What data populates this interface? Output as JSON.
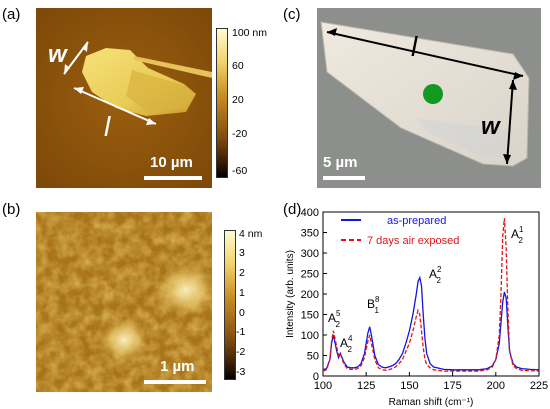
{
  "panels": {
    "a": {
      "letter": "(a)",
      "scale_label": "10 µm",
      "w_label": "w",
      "l_label": "l",
      "colorbar_ticks": [
        "100 nm",
        "60",
        "20",
        "-20",
        "-60"
      ]
    },
    "b": {
      "letter": "(b)",
      "scale_label": "1 µm",
      "colorbar_ticks": [
        "4 nm",
        "3",
        "2",
        "1",
        "0",
        "-1",
        "-2",
        "-3"
      ]
    },
    "c": {
      "letter": "(c)",
      "scale_label": "5 µm",
      "w_label": "w",
      "l_label": "l"
    },
    "d": {
      "letter": "(d)"
    }
  },
  "colors": {
    "as_prepared": "#1515e0",
    "air_exposed": "#e01515",
    "dot": "#119922"
  },
  "chart_data": {
    "type": "line",
    "title": "",
    "xlabel": "Raman shift (cm⁻¹)",
    "ylabel": "Intensity (arb. units)",
    "xlim": [
      100,
      225
    ],
    "ylim": [
      0,
      400
    ],
    "xticks": [
      100,
      125,
      150,
      175,
      200,
      225
    ],
    "yticks": [
      0,
      50,
      100,
      150,
      200,
      250,
      300,
      350,
      400
    ],
    "x": [
      100,
      102,
      104,
      105,
      106,
      108,
      109,
      110,
      112,
      114,
      116,
      118,
      120,
      122,
      124,
      126,
      127,
      128,
      130,
      132,
      134,
      136,
      138,
      140,
      142,
      144,
      146,
      148,
      150,
      152,
      154,
      155,
      156,
      157,
      158,
      159,
      160,
      162,
      164,
      166,
      168,
      170,
      175,
      180,
      185,
      190,
      195,
      198,
      200,
      202,
      203,
      204,
      205,
      206,
      207,
      208,
      210,
      212,
      215,
      220,
      225
    ],
    "series": [
      {
        "name": "as-prepared",
        "style": "solid",
        "values": [
          15,
          18,
          40,
          80,
          100,
          60,
          45,
          55,
          35,
          22,
          20,
          20,
          22,
          30,
          55,
          105,
          120,
          100,
          50,
          28,
          22,
          20,
          22,
          25,
          30,
          40,
          55,
          80,
          110,
          150,
          200,
          230,
          240,
          220,
          150,
          90,
          55,
          30,
          22,
          20,
          18,
          16,
          15,
          15,
          15,
          15,
          18,
          25,
          40,
          80,
          130,
          180,
          205,
          190,
          120,
          60,
          30,
          22,
          18,
          16,
          15
        ]
      },
      {
        "name": "7 days air exposed",
        "style": "dashed",
        "values": [
          12,
          15,
          40,
          85,
          110,
          70,
          50,
          55,
          30,
          18,
          16,
          16,
          18,
          25,
          45,
          85,
          100,
          80,
          40,
          20,
          16,
          14,
          15,
          18,
          22,
          30,
          40,
          60,
          80,
          110,
          145,
          160,
          150,
          110,
          70,
          40,
          28,
          20,
          15,
          14,
          13,
          12,
          12,
          12,
          12,
          12,
          15,
          22,
          40,
          100,
          200,
          340,
          385,
          310,
          160,
          60,
          25,
          18,
          14,
          13,
          12
        ]
      }
    ],
    "annotations": [
      {
        "base": "A",
        "sup": "5",
        "sub": "2"
      },
      {
        "base": "A",
        "sup": "4",
        "sub": "2"
      },
      {
        "base": "B",
        "sup": "8",
        "sub": "1"
      },
      {
        "base": "A",
        "sup": "2",
        "sub": "2"
      },
      {
        "base": "A",
        "sup": "1",
        "sub": "2"
      }
    ],
    "legend": "top-left"
  }
}
